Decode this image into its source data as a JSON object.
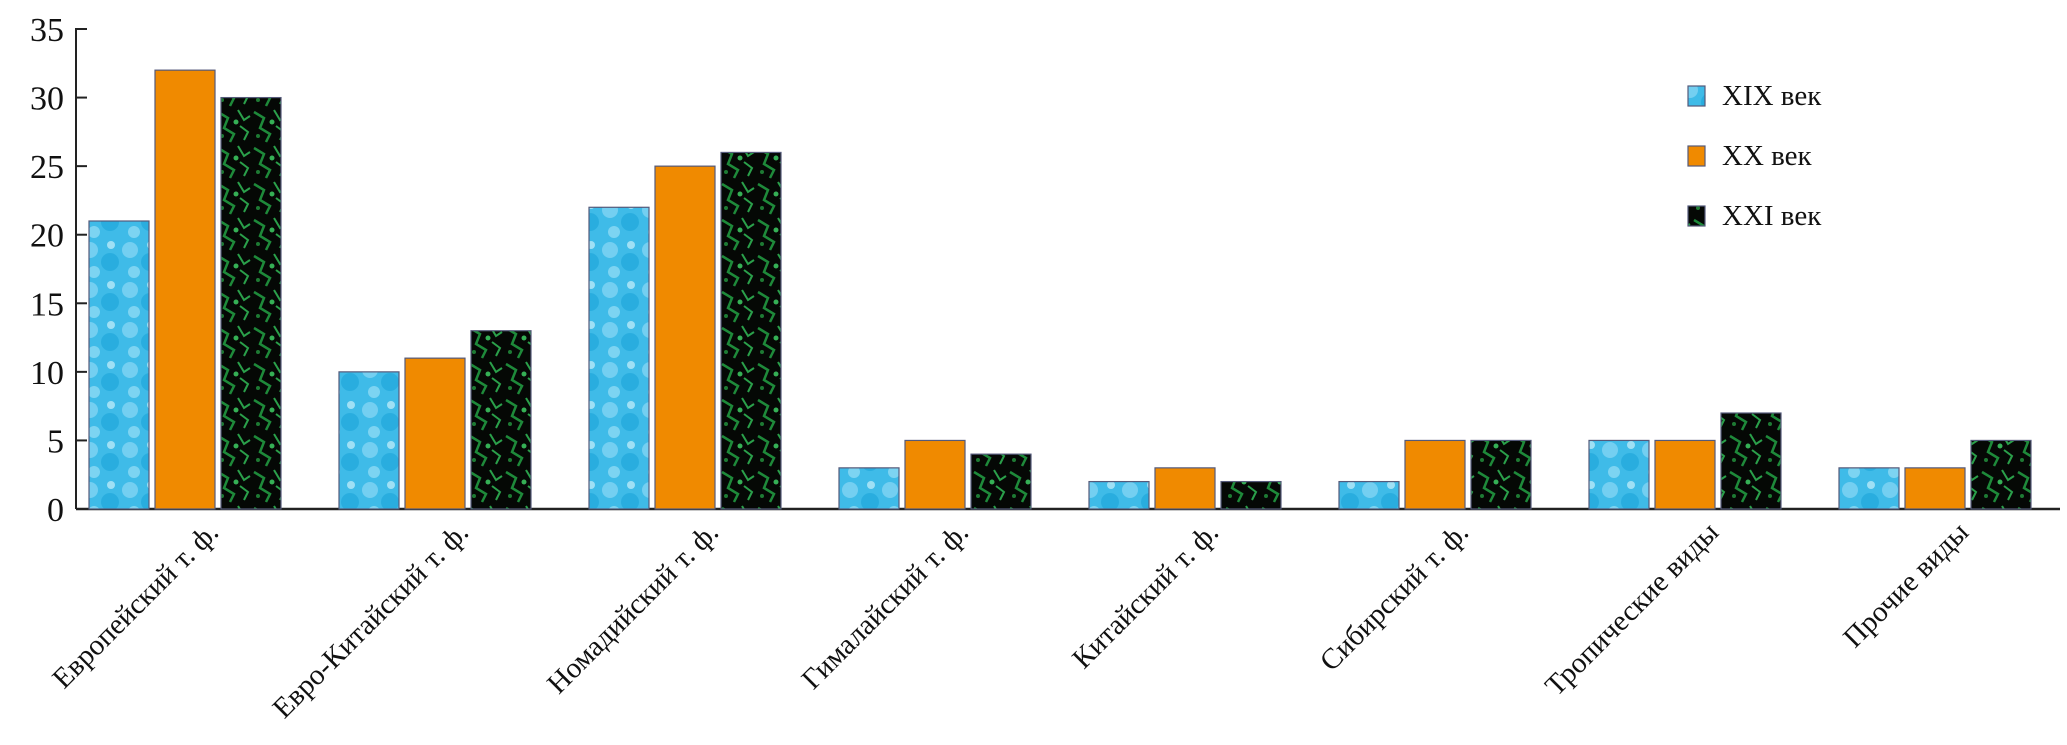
{
  "chart_data": {
    "type": "bar",
    "title": "",
    "xlabel": "",
    "ylabel": "",
    "ylim": [
      0,
      35
    ],
    "yticks": [
      0,
      5,
      10,
      15,
      20,
      25,
      30,
      35
    ],
    "grid": false,
    "legend_position": "top-right",
    "categories": [
      "Европейский т. ф.",
      "Евро-Китайский т. ф.",
      "Номадийский т. ф.",
      "Гималайский т. ф.",
      "Китайский т. ф.",
      "Сибирский т. ф.",
      "Тропические виды",
      "Прочие виды"
    ],
    "series": [
      {
        "name": "XIX век",
        "color": "#3cb8e6",
        "fill": "blue-bubble-texture",
        "values": [
          21,
          10,
          22,
          3,
          2,
          2,
          5,
          3
        ]
      },
      {
        "name": "XX век",
        "color": "#f08a00",
        "fill": "solid-orange",
        "values": [
          32,
          11,
          25,
          5,
          3,
          5,
          5,
          3
        ]
      },
      {
        "name": "XXI век",
        "color": "#1f7a35",
        "fill": "green-black-texture",
        "values": [
          30,
          13,
          26,
          4,
          2,
          5,
          7,
          5
        ]
      }
    ]
  }
}
